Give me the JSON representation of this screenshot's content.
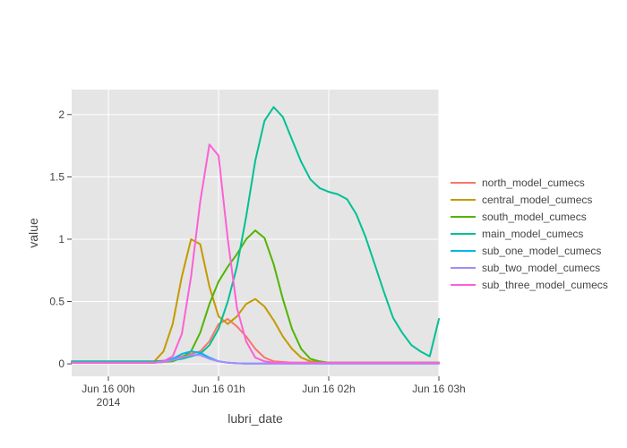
{
  "chart_data": {
    "type": "line",
    "xlabel": "lubri_date",
    "ylabel": "value",
    "xlim": [
      "2014-06-15 23:40",
      "2014-06-16 03:00"
    ],
    "ylim": [
      -0.1,
      2.2
    ],
    "x_ticks": [
      {
        "t": "2014-06-16 00:00",
        "label": "Jun 16 00h",
        "sublabel": "2014"
      },
      {
        "t": "2014-06-16 01:00",
        "label": "Jun 16 01h",
        "sublabel": ""
      },
      {
        "t": "2014-06-16 02:00",
        "label": "Jun 16 02h",
        "sublabel": ""
      },
      {
        "t": "2014-06-16 03:00",
        "label": "Jun 16 03h",
        "sublabel": ""
      }
    ],
    "y_ticks": [
      0,
      0.5,
      1,
      1.5,
      2
    ],
    "y_tick_labels": [
      "0",
      "0.5",
      "1",
      "1.5",
      "2"
    ],
    "grid": true,
    "legend_position": "right",
    "x": [
      "23:40",
      "23:45",
      "23:50",
      "23:55",
      "00:00",
      "00:05",
      "00:10",
      "00:15",
      "00:20",
      "00:25",
      "00:30",
      "00:35",
      "00:40",
      "00:45",
      "00:50",
      "00:55",
      "01:00",
      "01:05",
      "01:10",
      "01:15",
      "01:20",
      "01:25",
      "01:30",
      "01:35",
      "01:40",
      "01:45",
      "01:50",
      "01:55",
      "02:00",
      "02:05",
      "02:10",
      "02:15",
      "02:20",
      "02:25",
      "02:30",
      "02:35",
      "02:40",
      "02:45",
      "02:50",
      "02:55",
      "03:00"
    ],
    "series": [
      {
        "name": "north_model_cumecs",
        "color": "#F8766D",
        "values": [
          0.01,
          0.01,
          0.01,
          0.01,
          0.01,
          0.01,
          0.01,
          0.01,
          0.01,
          0.01,
          0.02,
          0.04,
          0.06,
          0.08,
          0.1,
          0.18,
          0.32,
          0.36,
          0.3,
          0.22,
          0.12,
          0.05,
          0.02,
          0.015,
          0.01,
          0.01,
          0.01,
          0.01,
          0.01,
          0.01,
          0.01,
          0.01,
          0.01,
          0.01,
          0.01,
          0.01,
          0.01,
          0.01,
          0.01,
          0.01,
          0.01
        ]
      },
      {
        "name": "central_model_cumecs",
        "color": "#C49A00",
        "values": [
          0.01,
          0.01,
          0.01,
          0.01,
          0.01,
          0.01,
          0.01,
          0.01,
          0.01,
          0.02,
          0.1,
          0.32,
          0.7,
          1.0,
          0.96,
          0.62,
          0.38,
          0.32,
          0.38,
          0.48,
          0.52,
          0.46,
          0.35,
          0.22,
          0.12,
          0.05,
          0.02,
          0.015,
          0.01,
          0.01,
          0.01,
          0.01,
          0.01,
          0.01,
          0.01,
          0.01,
          0.01,
          0.01,
          0.01,
          0.01,
          0.01
        ]
      },
      {
        "name": "south_model_cumecs",
        "color": "#53B400",
        "values": [
          0.01,
          0.01,
          0.01,
          0.01,
          0.01,
          0.01,
          0.01,
          0.01,
          0.01,
          0.01,
          0.015,
          0.02,
          0.05,
          0.1,
          0.25,
          0.48,
          0.66,
          0.78,
          0.88,
          1.0,
          1.07,
          1.01,
          0.8,
          0.52,
          0.28,
          0.12,
          0.04,
          0.02,
          0.01,
          0.01,
          0.01,
          0.01,
          0.01,
          0.01,
          0.01,
          0.01,
          0.01,
          0.01,
          0.01,
          0.01,
          0.01
        ]
      },
      {
        "name": "main_model_cumecs",
        "color": "#00C094",
        "values": [
          0.02,
          0.02,
          0.02,
          0.02,
          0.02,
          0.02,
          0.02,
          0.02,
          0.02,
          0.02,
          0.025,
          0.03,
          0.04,
          0.06,
          0.08,
          0.15,
          0.28,
          0.5,
          0.78,
          1.18,
          1.63,
          1.95,
          2.06,
          1.98,
          1.8,
          1.62,
          1.48,
          1.41,
          1.38,
          1.36,
          1.32,
          1.2,
          1.02,
          0.8,
          0.58,
          0.37,
          0.25,
          0.15,
          0.1,
          0.06,
          0.36
        ]
      },
      {
        "name": "sub_one_model_cumecs",
        "color": "#00B6EB",
        "values": [
          0.01,
          0.01,
          0.01,
          0.01,
          0.01,
          0.01,
          0.01,
          0.01,
          0.01,
          0.01,
          0.015,
          0.04,
          0.08,
          0.1,
          0.09,
          0.05,
          0.02,
          0.01,
          0.005,
          0.002,
          0.002,
          0.002,
          0.002,
          0.002,
          0.002,
          0.002,
          0.002,
          0.002,
          0.002,
          0.002,
          0.002,
          0.002,
          0.002,
          0.002,
          0.002,
          0.002,
          0.002,
          0.002,
          0.002,
          0.002,
          0.002
        ]
      },
      {
        "name": "sub_two_model_cumecs",
        "color": "#A58AFF",
        "values": [
          0.01,
          0.01,
          0.01,
          0.01,
          0.01,
          0.01,
          0.01,
          0.01,
          0.01,
          0.01,
          0.015,
          0.03,
          0.05,
          0.07,
          0.07,
          0.04,
          0.02,
          0.01,
          0.005,
          0.002,
          0.002,
          0.002,
          0.002,
          0.002,
          0.002,
          0.002,
          0.002,
          0.002,
          0.002,
          0.002,
          0.002,
          0.002,
          0.002,
          0.002,
          0.002,
          0.002,
          0.002,
          0.002,
          0.002,
          0.002,
          0.002
        ]
      },
      {
        "name": "sub_three_model_cumecs",
        "color": "#FB61D7",
        "values": [
          0.01,
          0.01,
          0.01,
          0.01,
          0.01,
          0.01,
          0.01,
          0.01,
          0.01,
          0.01,
          0.02,
          0.06,
          0.24,
          0.7,
          1.3,
          1.76,
          1.67,
          1.0,
          0.45,
          0.18,
          0.05,
          0.02,
          0.01,
          0.01,
          0.01,
          0.01,
          0.01,
          0.01,
          0.01,
          0.01,
          0.01,
          0.01,
          0.01,
          0.01,
          0.01,
          0.01,
          0.01,
          0.01,
          0.01,
          0.01,
          0.01
        ]
      }
    ]
  }
}
